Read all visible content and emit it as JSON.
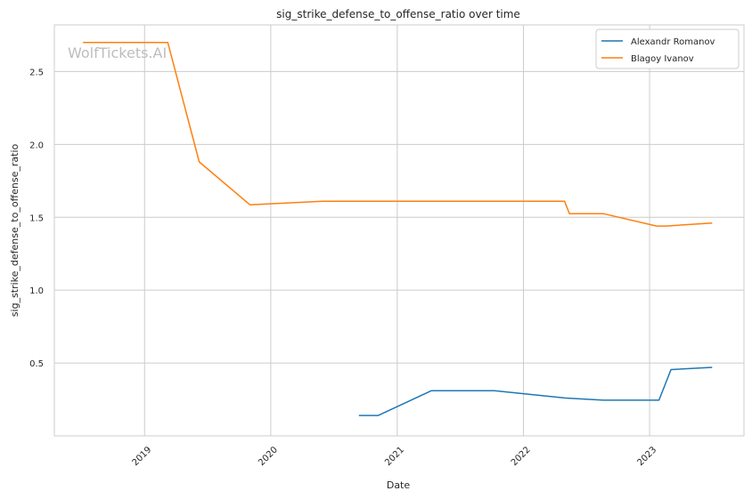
{
  "chart_data": {
    "type": "line",
    "title": "sig_strike_defense_to_offense_ratio over time",
    "xlabel": "Date",
    "ylabel": "sig_strike_defense_to_offense_ratio",
    "watermark": "WolfTickets.AI",
    "grid": true,
    "legend_position": "top-right",
    "x_axis": {
      "type": "date",
      "range": [
        "2018-04-15",
        "2023-10-01"
      ],
      "ticks": [
        {
          "date": "2019-01-01",
          "label": "2019"
        },
        {
          "date": "2020-01-01",
          "label": "2020"
        },
        {
          "date": "2021-01-01",
          "label": "2021"
        },
        {
          "date": "2022-01-01",
          "label": "2022"
        },
        {
          "date": "2023-01-01",
          "label": "2023"
        }
      ]
    },
    "y_axis": {
      "range": [
        0.0,
        2.82
      ],
      "ticks": [
        {
          "value": 0.5,
          "label": "0.5"
        },
        {
          "value": 1.0,
          "label": "1.0"
        },
        {
          "value": 1.5,
          "label": "1.5"
        },
        {
          "value": 2.0,
          "label": "2.0"
        },
        {
          "value": 2.5,
          "label": "2.5"
        }
      ]
    },
    "series": [
      {
        "name": "Alexandr Romanov",
        "color": "#1f77b4",
        "points": [
          {
            "x": "2020-09-12",
            "y": 0.14
          },
          {
            "x": "2020-11-07",
            "y": 0.14
          },
          {
            "x": "2021-04-10",
            "y": 0.31
          },
          {
            "x": "2021-10-09",
            "y": 0.31
          },
          {
            "x": "2022-04-30",
            "y": 0.26
          },
          {
            "x": "2022-08-20",
            "y": 0.245
          },
          {
            "x": "2023-01-28",
            "y": 0.245
          },
          {
            "x": "2023-03-04",
            "y": 0.455
          },
          {
            "x": "2023-07-01",
            "y": 0.47
          }
        ]
      },
      {
        "name": "Blagoy Ivanov",
        "color": "#ff7f0e",
        "points": [
          {
            "x": "2018-07-07",
            "y": 2.7
          },
          {
            "x": "2019-03-09",
            "y": 2.7
          },
          {
            "x": "2019-06-08",
            "y": 1.88
          },
          {
            "x": "2019-11-02",
            "y": 1.585
          },
          {
            "x": "2020-05-30",
            "y": 1.61
          },
          {
            "x": "2022-04-30",
            "y": 1.61
          },
          {
            "x": "2022-05-14",
            "y": 1.525
          },
          {
            "x": "2022-08-20",
            "y": 1.525
          },
          {
            "x": "2023-01-21",
            "y": 1.44
          },
          {
            "x": "2023-02-18",
            "y": 1.44
          },
          {
            "x": "2023-07-01",
            "y": 1.46
          }
        ]
      }
    ]
  }
}
